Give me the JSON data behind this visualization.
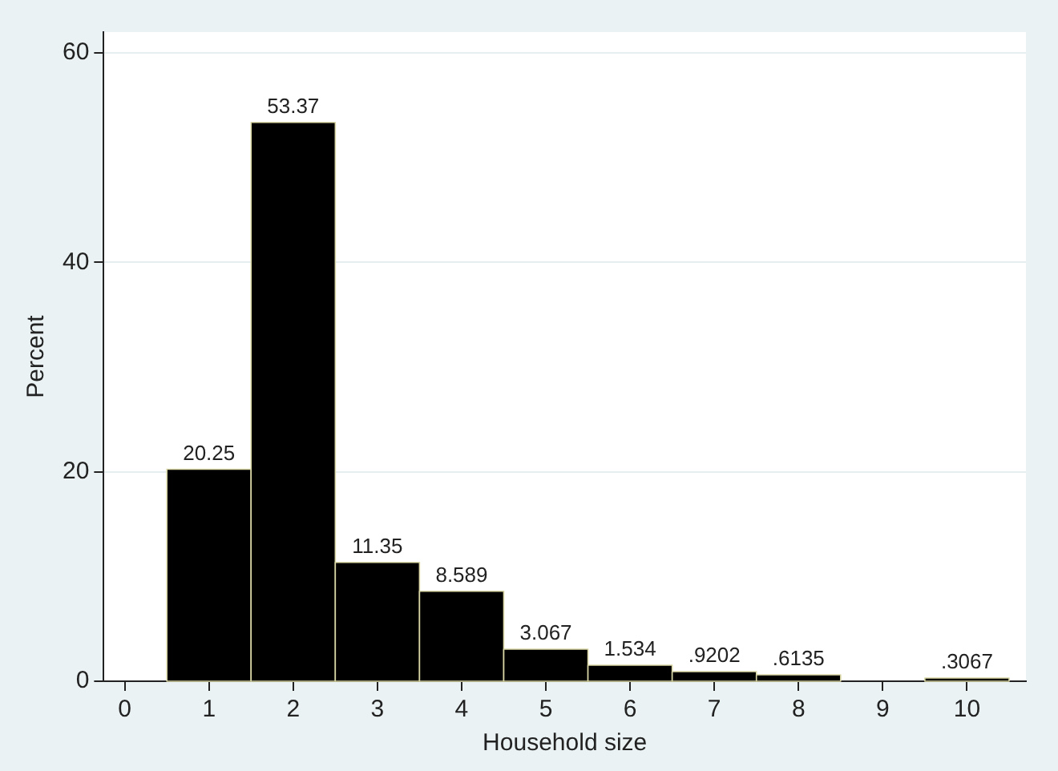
{
  "chart_data": {
    "type": "histogram",
    "xlabel": "Household size",
    "ylabel": "Percent",
    "bins": [
      0.5,
      1.5,
      2.5,
      3.5,
      4.5,
      5.5,
      6.5,
      7.5,
      8.5,
      9.5,
      10.5
    ],
    "values": [
      20.25,
      53.37,
      11.35,
      8.589,
      3.067,
      1.534,
      0.9202,
      0.6135,
      0,
      0.3067
    ],
    "value_labels": [
      "20.25",
      "53.37",
      "11.35",
      "8.589",
      "3.067",
      "1.534",
      ".9202",
      ".6135",
      null,
      ".3067"
    ],
    "color": "#000000",
    "xlim": [
      -0.25,
      10.7
    ],
    "xticks": [
      0,
      1,
      2,
      3,
      4,
      5,
      6,
      7,
      8,
      9,
      10
    ],
    "ylim": [
      0,
      62
    ],
    "yticks": [
      0,
      20,
      40,
      60
    ],
    "grid": "y",
    "legend": false
  }
}
